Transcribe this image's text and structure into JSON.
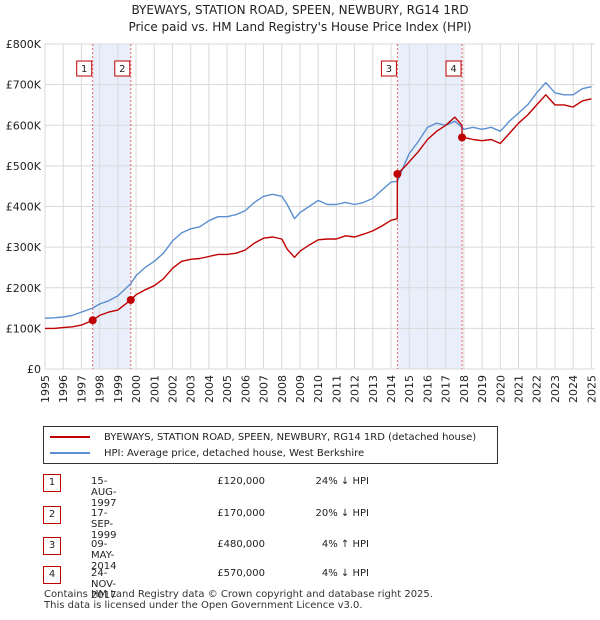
{
  "title_line1": "BYEWAYS, STATION ROAD, SPEEN, NEWBURY, RG14 1RD",
  "title_line2": "Price paid vs. HM Land Registry's House Price Index (HPI)",
  "colors": {
    "property": "#c00000",
    "hpi": "#5b8fd0",
    "band": "#e8eefa",
    "marker_border": "#c00000"
  },
  "legend": {
    "property_label": "BYEWAYS, STATION ROAD, SPEEN, NEWBURY, RG14 1RD (detached house)",
    "hpi_label": "HPI: Average price, detached house, West Berkshire"
  },
  "transactions": [
    {
      "num": "1",
      "date": "15-AUG-1997",
      "price": "£120,000",
      "hpi": "24% ↓ HPI"
    },
    {
      "num": "2",
      "date": "17-SEP-1999",
      "price": "£170,000",
      "hpi": "20% ↓ HPI"
    },
    {
      "num": "3",
      "date": "09-MAY-2014",
      "price": "£480,000",
      "hpi": "4% ↑ HPI"
    },
    {
      "num": "4",
      "date": "24-NOV-2017",
      "price": "£570,000",
      "hpi": "4% ↓ HPI"
    }
  ],
  "footer_line1": "Contains HM Land Registry data © Crown copyright and database right 2025.",
  "footer_line2": "This data is licensed under the Open Government Licence v3.0.",
  "chart_data": {
    "type": "line",
    "title": "Price paid vs. HM Land Registry's House Price Index (HPI)",
    "xlabel": "",
    "ylabel": "",
    "xlim": [
      1995,
      2025.2
    ],
    "ylim": [
      0,
      800000
    ],
    "yticks": [
      0,
      100000,
      200000,
      300000,
      400000,
      500000,
      600000,
      700000,
      800000
    ],
    "ytick_labels": [
      "£0",
      "£100K",
      "£200K",
      "£300K",
      "£400K",
      "£500K",
      "£600K",
      "£700K",
      "£800K"
    ],
    "xticks": [
      1995,
      1996,
      1997,
      1998,
      1999,
      2000,
      2001,
      2002,
      2003,
      2004,
      2005,
      2006,
      2007,
      2008,
      2009,
      2010,
      2011,
      2012,
      2013,
      2014,
      2015,
      2016,
      2017,
      2018,
      2019,
      2020,
      2021,
      2022,
      2023,
      2024,
      2025
    ],
    "grid": true,
    "series": [
      {
        "name": "HPI: Average price, detached house, West Berkshire",
        "x": [
          1995,
          1995.5,
          1996,
          1996.5,
          1997,
          1997.62,
          1998,
          1998.5,
          1999,
          1999.71,
          2000,
          2000.5,
          2001,
          2001.5,
          2002,
          2002.5,
          2003,
          2003.5,
          2004,
          2004.5,
          2005,
          2005.5,
          2006,
          2006.5,
          2007,
          2007.5,
          2008,
          2008.3,
          2008.7,
          2009,
          2009.5,
          2010,
          2010.5,
          2011,
          2011.5,
          2012,
          2012.5,
          2013,
          2013.5,
          2014,
          2014.35,
          2014.8,
          2015,
          2015.5,
          2016,
          2016.5,
          2017,
          2017.5,
          2017.9,
          2018,
          2018.5,
          2019,
          2019.5,
          2020,
          2020.5,
          2021,
          2021.5,
          2022,
          2022.5,
          2022.8,
          2023,
          2023.5,
          2024,
          2024.5,
          2025
        ],
        "values": [
          125000,
          126000,
          128000,
          132000,
          140000,
          150000,
          160000,
          168000,
          180000,
          210000,
          230000,
          250000,
          265000,
          285000,
          315000,
          335000,
          345000,
          350000,
          365000,
          375000,
          375000,
          380000,
          390000,
          410000,
          425000,
          430000,
          425000,
          405000,
          370000,
          385000,
          400000,
          415000,
          405000,
          405000,
          410000,
          405000,
          410000,
          420000,
          440000,
          460000,
          462000,
          510000,
          530000,
          560000,
          595000,
          605000,
          600000,
          610000,
          595000,
          590000,
          595000,
          590000,
          595000,
          585000,
          610000,
          630000,
          650000,
          680000,
          705000,
          690000,
          680000,
          675000,
          675000,
          690000,
          695000
        ]
      },
      {
        "name": "BYEWAYS, STATION ROAD, SPEEN, NEWBURY, RG14 1RD (detached house)",
        "x": [
          1995,
          1995.5,
          1996,
          1996.5,
          1997,
          1997.62,
          1998,
          1998.5,
          1999,
          1999.71,
          2000,
          2000.5,
          2001,
          2001.5,
          2002,
          2002.5,
          2003,
          2003.5,
          2004,
          2004.5,
          2005,
          2005.5,
          2006,
          2006.5,
          2007,
          2007.5,
          2008,
          2008.3,
          2008.7,
          2009,
          2009.5,
          2010,
          2010.5,
          2011,
          2011.5,
          2012,
          2012.5,
          2013,
          2013.5,
          2014,
          2014.34,
          2014.35,
          2014.8,
          2015,
          2015.5,
          2016,
          2016.5,
          2017,
          2017.5,
          2017.89,
          2017.9,
          2018,
          2018.5,
          2019,
          2019.5,
          2020,
          2020.5,
          2021,
          2021.5,
          2022,
          2022.5,
          2022.8,
          2023,
          2023.5,
          2024,
          2024.5,
          2025
        ],
        "values": [
          100000,
          100000,
          102000,
          104000,
          108000,
          120000,
          132000,
          140000,
          145000,
          170000,
          183000,
          195000,
          205000,
          222000,
          248000,
          265000,
          270000,
          272000,
          277000,
          282000,
          282000,
          285000,
          293000,
          310000,
          322000,
          325000,
          320000,
          295000,
          275000,
          290000,
          305000,
          318000,
          320000,
          320000,
          328000,
          325000,
          332000,
          340000,
          352000,
          366000,
          370000,
          480000,
          500000,
          510000,
          535000,
          565000,
          585000,
          600000,
          620000,
          600000,
          570000,
          570000,
          565000,
          562000,
          565000,
          555000,
          580000,
          605000,
          625000,
          650000,
          675000,
          660000,
          650000,
          650000,
          645000,
          660000,
          665000
        ]
      }
    ],
    "sales": [
      {
        "label": "1",
        "x": 1997.62,
        "y": 120000
      },
      {
        "label": "2",
        "x": 1999.71,
        "y": 170000
      },
      {
        "label": "3",
        "x": 2014.35,
        "y": 480000
      },
      {
        "label": "4",
        "x": 2017.9,
        "y": 570000
      }
    ],
    "bands": [
      [
        1997.62,
        1999.71
      ],
      [
        2014.35,
        2017.9
      ]
    ]
  }
}
